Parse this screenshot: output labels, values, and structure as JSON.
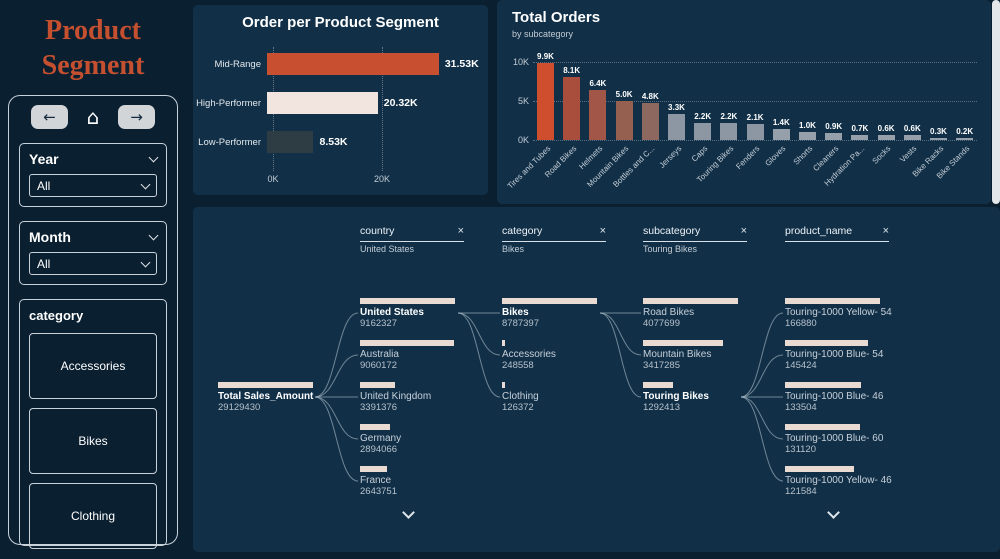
{
  "page": {
    "title": "Product Segment",
    "background": "#0a1f30",
    "panel_color": "#113048",
    "accent_color": "#c94f31",
    "title_color": "#c5502f"
  },
  "sidebar": {
    "nav": {
      "back_label": "←",
      "home_label": "⌂",
      "forward_label": "→"
    },
    "filters": [
      {
        "label": "Year",
        "value": "All"
      },
      {
        "label": "Month",
        "value": "All"
      }
    ],
    "category": {
      "label": "category",
      "items": [
        "Accessories",
        "Bikes",
        "Clothing"
      ]
    }
  },
  "chart_data": [
    {
      "type": "bar",
      "orientation": "horizontal",
      "title": "Order per Product Segment",
      "categories": [
        "Mid-Range",
        "High-Performer",
        "Low-Performer"
      ],
      "values": [
        31.53,
        20.32,
        8.53
      ],
      "value_labels": [
        "31.53K",
        "20.32K",
        "8.53K"
      ],
      "bar_colors": [
        "#c94f31",
        "#f2e4df",
        "#2e3c43"
      ],
      "x_ticks": [
        {
          "label": "0K",
          "value": 0
        },
        {
          "label": "20K",
          "value": 20
        }
      ],
      "xlim": [
        0,
        33.5
      ],
      "grid": "dotted-vertical"
    },
    {
      "type": "bar",
      "orientation": "vertical",
      "title": "Total Orders",
      "subtitle": "by subcategory",
      "categories": [
        "Tires and Tubes",
        "Road Bikes",
        "Helmets",
        "Mountain Bikes",
        "Bottles and C...",
        "Jerseys",
        "Caps",
        "Touring Bikes",
        "Fenders",
        "Gloves",
        "Shorts",
        "Cleaners",
        "Hydration Pa...",
        "Socks",
        "Vests",
        "Bike Racks",
        "Bike Stands"
      ],
      "values": [
        9.9,
        8.1,
        6.4,
        5.0,
        4.8,
        3.3,
        2.2,
        2.2,
        2.1,
        1.4,
        1.0,
        0.9,
        0.7,
        0.6,
        0.6,
        0.3,
        0.2
      ],
      "value_labels": [
        "9.9K",
        "8.1K",
        "6.4K",
        "5.0K",
        "4.8K",
        "3.3K",
        "2.2K",
        "2.2K",
        "2.1K",
        "1.4K",
        "1.0K",
        "0.9K",
        "0.7K",
        "0.6K",
        "0.6K",
        "0.3K",
        "0.2K"
      ],
      "bar_colors": [
        "#cf4e2d",
        "#a94e3c",
        "#a15647",
        "#966051",
        "#8d685e",
        "#8d97a3",
        "#8d97a3",
        "#8d97a3",
        "#8d97a3",
        "#96a0ab",
        "#96a0ab",
        "#96a0ab",
        "#96a0ab",
        "#96a0ab",
        "#96a0ab",
        "#96a0ab",
        "#96a0ab"
      ],
      "y_ticks": [
        {
          "label": "0K",
          "value": 0
        },
        {
          "label": "5K",
          "value": 5
        },
        {
          "label": "10K",
          "value": 10
        }
      ],
      "ylim": [
        0,
        10.5
      ],
      "grid": "dotted-horizontal"
    },
    {
      "type": "decomposition_tree",
      "close_label": "×",
      "columns": [
        {
          "field": "country",
          "selected_value": "United States"
        },
        {
          "field": "category",
          "selected_value": "Bikes"
        },
        {
          "field": "subcategory",
          "selected_value": "Touring Bikes"
        },
        {
          "field": "product_name",
          "selected_value": ""
        }
      ],
      "root": {
        "label": "Total Sales_Amount",
        "value": "29129430",
        "selected": true
      },
      "levels": [
        {
          "field": "country",
          "has_more": true,
          "nodes": [
            {
              "label": "United States",
              "value": "9162327",
              "selected": true
            },
            {
              "label": "Australia",
              "value": "9060172",
              "selected": false
            },
            {
              "label": "United Kingdom",
              "value": "3391376",
              "selected": false
            },
            {
              "label": "Germany",
              "value": "2894066",
              "selected": false
            },
            {
              "label": "France",
              "value": "2643751",
              "selected": false
            }
          ]
        },
        {
          "field": "category",
          "has_more": false,
          "nodes": [
            {
              "label": "Bikes",
              "value": "8787397",
              "selected": true
            },
            {
              "label": "Accessories",
              "value": "248558",
              "selected": false
            },
            {
              "label": "Clothing",
              "value": "126372",
              "selected": false
            }
          ]
        },
        {
          "field": "subcategory",
          "has_more": false,
          "nodes": [
            {
              "label": "Road Bikes",
              "value": "4077699",
              "selected": false
            },
            {
              "label": "Mountain Bikes",
              "value": "3417285",
              "selected": false
            },
            {
              "label": "Touring Bikes",
              "value": "1292413",
              "selected": true
            }
          ]
        },
        {
          "field": "product_name",
          "has_more": true,
          "nodes": [
            {
              "label": "Touring-1000 Yellow- 54",
              "value": "166880",
              "selected": false
            },
            {
              "label": "Touring-1000 Blue- 54",
              "value": "145424",
              "selected": false
            },
            {
              "label": "Touring-1000 Blue- 46",
              "value": "133504",
              "selected": false
            },
            {
              "label": "Touring-1000 Blue- 60",
              "value": "131120",
              "selected": false
            },
            {
              "label": "Touring-1000 Yellow- 46",
              "value": "121584",
              "selected": false
            }
          ]
        }
      ]
    }
  ]
}
